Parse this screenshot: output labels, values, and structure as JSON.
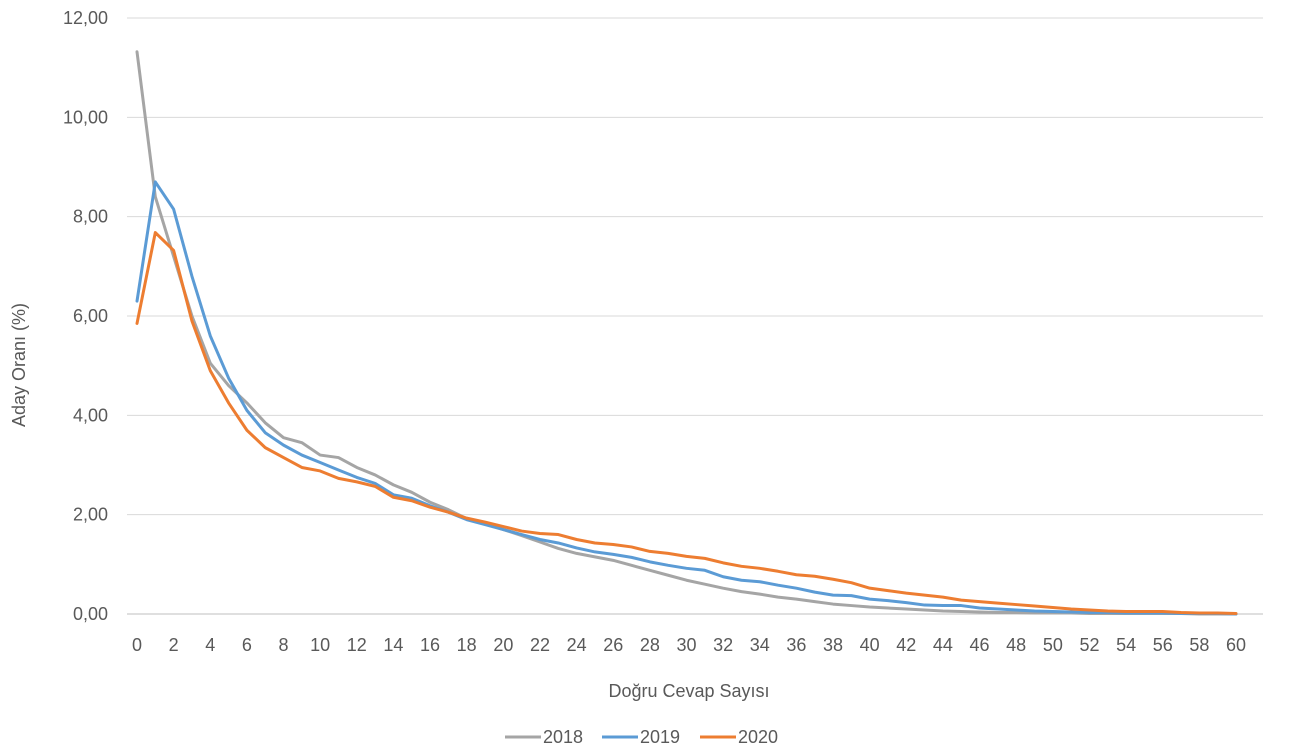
{
  "chart_data": {
    "type": "line",
    "title": "",
    "xlabel": "Doğru Cevap Sayısı",
    "ylabel": "Aday Oranı (%)",
    "ylim": [
      0,
      12
    ],
    "xlim": [
      0,
      60
    ],
    "y_ticks": [
      "0,00",
      "2,00",
      "4,00",
      "6,00",
      "8,00",
      "10,00",
      "12,00"
    ],
    "x_ticks": [
      "0",
      "2",
      "4",
      "6",
      "8",
      "10",
      "12",
      "14",
      "16",
      "18",
      "20",
      "22",
      "24",
      "26",
      "28",
      "30",
      "32",
      "34",
      "36",
      "38",
      "40",
      "42",
      "44",
      "46",
      "48",
      "50",
      "52",
      "54",
      "56",
      "58",
      "60"
    ],
    "grid": "horizontal",
    "legend_position": "bottom",
    "x": [
      0,
      1,
      2,
      3,
      4,
      5,
      6,
      7,
      8,
      9,
      10,
      11,
      12,
      13,
      14,
      15,
      16,
      17,
      18,
      19,
      20,
      21,
      22,
      23,
      24,
      25,
      26,
      27,
      28,
      29,
      30,
      31,
      32,
      33,
      34,
      35,
      36,
      37,
      38,
      39,
      40,
      41,
      42,
      43,
      44,
      45,
      46,
      47,
      48,
      49,
      50,
      51,
      52,
      53,
      54,
      55,
      56,
      57,
      58,
      59,
      60
    ],
    "series": [
      {
        "name": "2018",
        "color": "#a5a5a5",
        "values": [
          11.32,
          8.4,
          7.2,
          6.0,
          5.05,
          4.6,
          4.25,
          3.85,
          3.55,
          3.45,
          3.2,
          3.15,
          2.95,
          2.8,
          2.6,
          2.45,
          2.25,
          2.1,
          1.92,
          1.82,
          1.7,
          1.58,
          1.45,
          1.32,
          1.22,
          1.15,
          1.08,
          0.98,
          0.88,
          0.78,
          0.68,
          0.6,
          0.52,
          0.45,
          0.4,
          0.34,
          0.3,
          0.25,
          0.2,
          0.17,
          0.14,
          0.12,
          0.1,
          0.08,
          0.06,
          0.05,
          0.04,
          0.03,
          0.03,
          0.02,
          0.02,
          0.02,
          0.01,
          0.01,
          0.01,
          0.01,
          0.01,
          0.01,
          0.0,
          0.0,
          0.0
        ]
      },
      {
        "name": "2019",
        "color": "#5b9bd5",
        "values": [
          6.3,
          8.7,
          8.15,
          6.8,
          5.6,
          4.75,
          4.1,
          3.65,
          3.4,
          3.2,
          3.05,
          2.9,
          2.75,
          2.63,
          2.4,
          2.33,
          2.18,
          2.05,
          1.9,
          1.8,
          1.7,
          1.6,
          1.5,
          1.43,
          1.33,
          1.25,
          1.2,
          1.14,
          1.05,
          0.98,
          0.92,
          0.88,
          0.75,
          0.68,
          0.65,
          0.58,
          0.52,
          0.44,
          0.38,
          0.37,
          0.3,
          0.27,
          0.23,
          0.18,
          0.17,
          0.17,
          0.12,
          0.1,
          0.08,
          0.06,
          0.05,
          0.04,
          0.03,
          0.03,
          0.02,
          0.02,
          0.02,
          0.01,
          0.01,
          0.01,
          0.0
        ]
      },
      {
        "name": "2020",
        "color": "#ed7d31",
        "values": [
          5.85,
          7.68,
          7.32,
          5.9,
          4.9,
          4.25,
          3.7,
          3.35,
          3.15,
          2.95,
          2.88,
          2.73,
          2.66,
          2.57,
          2.35,
          2.28,
          2.15,
          2.05,
          1.93,
          1.85,
          1.76,
          1.67,
          1.62,
          1.6,
          1.5,
          1.43,
          1.4,
          1.35,
          1.26,
          1.22,
          1.16,
          1.12,
          1.03,
          0.96,
          0.92,
          0.86,
          0.79,
          0.76,
          0.7,
          0.63,
          0.52,
          0.47,
          0.42,
          0.38,
          0.34,
          0.28,
          0.25,
          0.22,
          0.19,
          0.16,
          0.13,
          0.1,
          0.08,
          0.06,
          0.05,
          0.05,
          0.05,
          0.03,
          0.02,
          0.02,
          0.01
        ]
      }
    ]
  }
}
